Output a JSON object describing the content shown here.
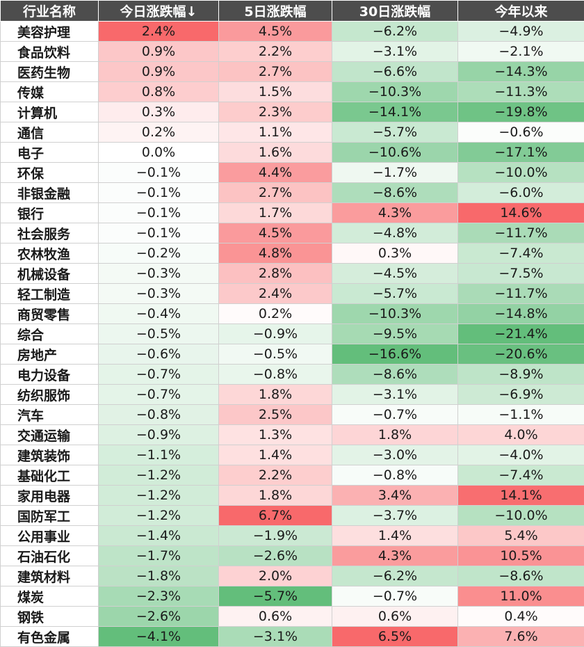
{
  "chart_data": {
    "type": "table",
    "columns": [
      "行业名称",
      "今日涨跌幅↓",
      "5日涨跌幅",
      "30日涨跌幅",
      "今年以来"
    ],
    "rows": [
      {
        "name": "美容护理",
        "values": [
          "2.4%",
          "4.5%",
          "−6.2%",
          "−4.9%"
        ]
      },
      {
        "name": "食品饮料",
        "values": [
          "0.9%",
          "2.2%",
          "−3.1%",
          "−2.1%"
        ]
      },
      {
        "name": "医药生物",
        "values": [
          "0.9%",
          "2.7%",
          "−6.6%",
          "−14.3%"
        ]
      },
      {
        "name": "传媒",
        "values": [
          "0.8%",
          "1.5%",
          "−10.3%",
          "−11.3%"
        ]
      },
      {
        "name": "计算机",
        "values": [
          "0.3%",
          "2.3%",
          "−14.1%",
          "−19.8%"
        ]
      },
      {
        "name": "通信",
        "values": [
          "0.2%",
          "1.1%",
          "−5.7%",
          "−0.6%"
        ]
      },
      {
        "name": "电子",
        "values": [
          "0.0%",
          "1.6%",
          "−10.6%",
          "−17.1%"
        ]
      },
      {
        "name": "环保",
        "values": [
          "−0.1%",
          "4.4%",
          "−1.7%",
          "−10.0%"
        ]
      },
      {
        "name": "非银金融",
        "values": [
          "−0.1%",
          "2.7%",
          "−8.6%",
          "−6.0%"
        ]
      },
      {
        "name": "银行",
        "values": [
          "−0.1%",
          "1.7%",
          "4.3%",
          "14.6%"
        ]
      },
      {
        "name": "社会服务",
        "values": [
          "−0.1%",
          "4.5%",
          "−4.8%",
          "−11.7%"
        ]
      },
      {
        "name": "农林牧渔",
        "values": [
          "−0.2%",
          "4.8%",
          "0.3%",
          "−7.4%"
        ]
      },
      {
        "name": "机械设备",
        "values": [
          "−0.3%",
          "2.8%",
          "−4.5%",
          "−7.5%"
        ]
      },
      {
        "name": "轻工制造",
        "values": [
          "−0.3%",
          "2.4%",
          "−5.7%",
          "−11.7%"
        ]
      },
      {
        "name": "商贸零售",
        "values": [
          "−0.4%",
          "0.2%",
          "−10.3%",
          "−14.8%"
        ]
      },
      {
        "name": "综合",
        "values": [
          "−0.5%",
          "−0.9%",
          "−9.5%",
          "−21.4%"
        ]
      },
      {
        "name": "房地产",
        "values": [
          "−0.6%",
          "−0.5%",
          "−16.6%",
          "−20.6%"
        ]
      },
      {
        "name": "电力设备",
        "values": [
          "−0.7%",
          "−0.8%",
          "−8.6%",
          "−8.9%"
        ]
      },
      {
        "name": "纺织服饰",
        "values": [
          "−0.7%",
          "1.8%",
          "−3.1%",
          "−6.9%"
        ]
      },
      {
        "name": "汽车",
        "values": [
          "−0.8%",
          "2.5%",
          "−0.7%",
          "−1.1%"
        ]
      },
      {
        "name": "交通运输",
        "values": [
          "−0.9%",
          "1.3%",
          "1.8%",
          "4.0%"
        ]
      },
      {
        "name": "建筑装饰",
        "values": [
          "−1.1%",
          "1.4%",
          "−3.0%",
          "−4.0%"
        ]
      },
      {
        "name": "基础化工",
        "values": [
          "−1.2%",
          "2.2%",
          "−0.8%",
          "−7.4%"
        ]
      },
      {
        "name": "家用电器",
        "values": [
          "−1.2%",
          "1.8%",
          "3.4%",
          "14.1%"
        ]
      },
      {
        "name": "国防军工",
        "values": [
          "−1.2%",
          "6.7%",
          "−3.7%",
          "−10.0%"
        ]
      },
      {
        "name": "公用事业",
        "values": [
          "−1.4%",
          "−1.9%",
          "1.4%",
          "5.4%"
        ]
      },
      {
        "name": "石油石化",
        "values": [
          "−1.7%",
          "−2.6%",
          "4.3%",
          "10.5%"
        ]
      },
      {
        "name": "建筑材料",
        "values": [
          "−1.8%",
          "2.0%",
          "−6.2%",
          "−8.6%"
        ]
      },
      {
        "name": "煤炭",
        "values": [
          "−2.3%",
          "−5.7%",
          "−0.7%",
          "11.0%"
        ]
      },
      {
        "name": "钢铁",
        "values": [
          "−2.6%",
          "0.6%",
          "0.6%",
          "0.4%"
        ]
      },
      {
        "name": "有色金属",
        "values": [
          "−4.1%",
          "−3.1%",
          "6.5%",
          "7.6%"
        ]
      }
    ],
    "colors": {
      "header_bg": "#4d4d4d",
      "header_text": "#ffffff",
      "positive": "#f8696b",
      "negative": "#63be7b",
      "neutral": "#ffffff",
      "grid": "#d0d0d0"
    }
  }
}
